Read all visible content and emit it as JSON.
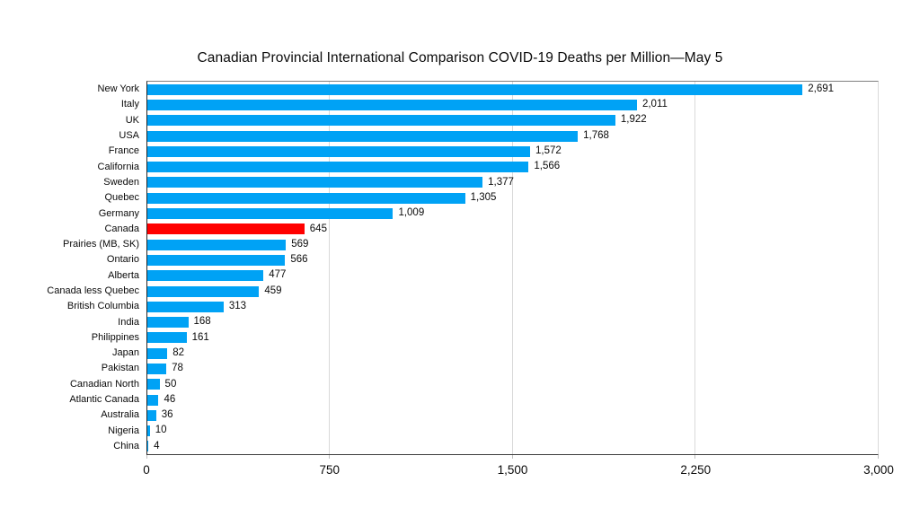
{
  "chart_data": {
    "type": "bar",
    "orientation": "horizontal",
    "title": "Canadian Provincial International Comparison COVID-19 Deaths per Million—May 5",
    "categories": [
      "New York",
      "Italy",
      "UK",
      "USA",
      "France",
      "California",
      "Sweden",
      "Quebec",
      "Germany",
      "Canada",
      "Prairies (MB, SK)",
      "Ontario",
      "Alberta",
      "Canada less Quebec",
      "British Columbia",
      "India",
      "Philippines",
      "Japan",
      "Pakistan",
      "Canadian North",
      "Atlantic Canada",
      "Australia",
      "Nigeria",
      "China"
    ],
    "values": [
      2691,
      2011,
      1922,
      1768,
      1572,
      1566,
      1377,
      1305,
      1009,
      645,
      569,
      566,
      477,
      459,
      313,
      168,
      161,
      82,
      78,
      50,
      46,
      36,
      10,
      4
    ],
    "value_labels": [
      "2,691",
      "2,011",
      "1,922",
      "1,768",
      "1,572",
      "1,566",
      "1,377",
      "1,305",
      "1,009",
      "645",
      "569",
      "566",
      "477",
      "459",
      "313",
      "168",
      "161",
      "82",
      "78",
      "50",
      "46",
      "36",
      "10",
      "4"
    ],
    "bar_color": "#00A2F5",
    "highlight": {
      "category": "Canada",
      "index": 9,
      "color": "#FF0000"
    },
    "x_axis": {
      "min": 0,
      "max": 3000,
      "tick_values": [
        0,
        750,
        1500,
        2250,
        3000
      ],
      "tick_labels": [
        "0",
        "750",
        "1,500",
        "2,250",
        "3,000"
      ]
    },
    "grid": "vertical-light-gray",
    "legend": "none",
    "data_labels": "outside-end"
  }
}
